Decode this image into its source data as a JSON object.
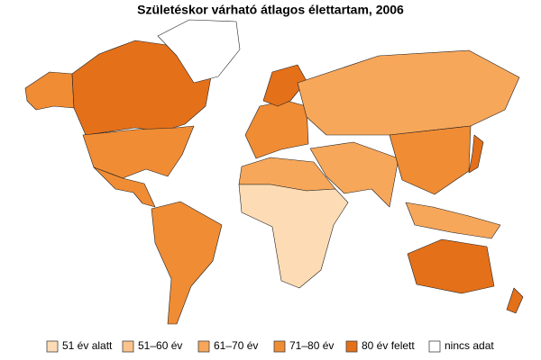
{
  "header": {
    "title": "Születéskor várható átlagos élettartam, 2006"
  },
  "legend": {
    "items": [
      {
        "label": "51 év alatt",
        "color": "#fddcb5"
      },
      {
        "label": "51–60 év",
        "color": "#fcc48c"
      },
      {
        "label": "61–70 év",
        "color": "#f7a75a"
      },
      {
        "label": "71–80 év",
        "color": "#f08c34"
      },
      {
        "label": "80 év felett",
        "color": "#e4701a"
      },
      {
        "label": "nincs adat",
        "color": "#ffffff"
      }
    ]
  }
}
